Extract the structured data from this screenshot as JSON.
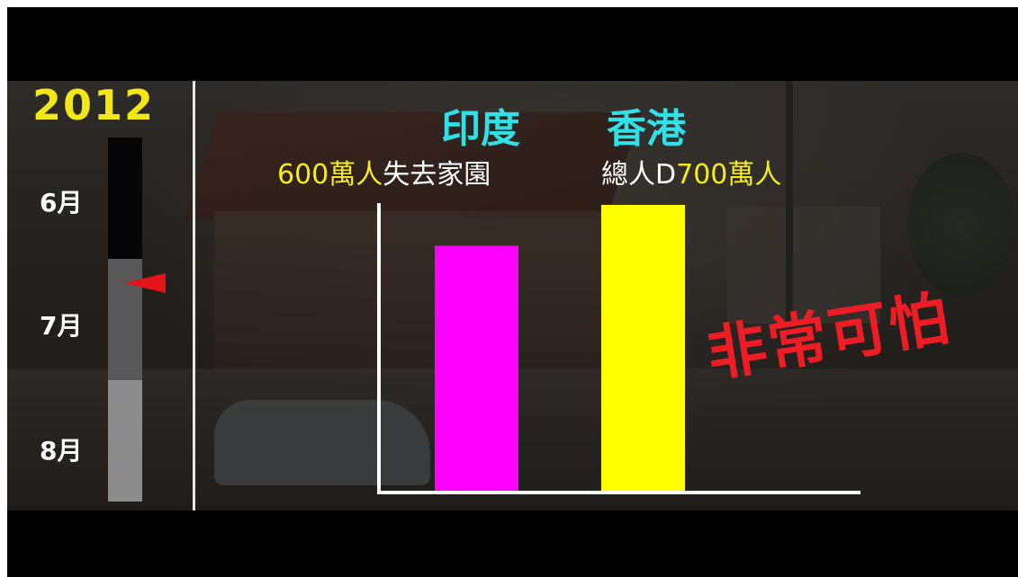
{
  "timeline": {
    "year": "2012",
    "months": [
      "6月",
      "7月",
      "8月"
    ],
    "colors": {
      "year": "#f2e614",
      "marker": "#e4141a"
    }
  },
  "chart_data": {
    "type": "bar",
    "categories": [
      "印度",
      "香港"
    ],
    "values": [
      600,
      700
    ],
    "unit": "萬人",
    "colors": [
      "#ff00ff",
      "#ffff00"
    ],
    "annotations": [
      {
        "value_text": "600萬人",
        "rest_text": "失去家園"
      },
      {
        "lead_text": "總人D",
        "value_text": "700萬人"
      }
    ],
    "title": "",
    "xlabel": "",
    "ylabel": "",
    "ylim": [
      0,
      700
    ],
    "grid": false
  },
  "headline": "非常可怕"
}
